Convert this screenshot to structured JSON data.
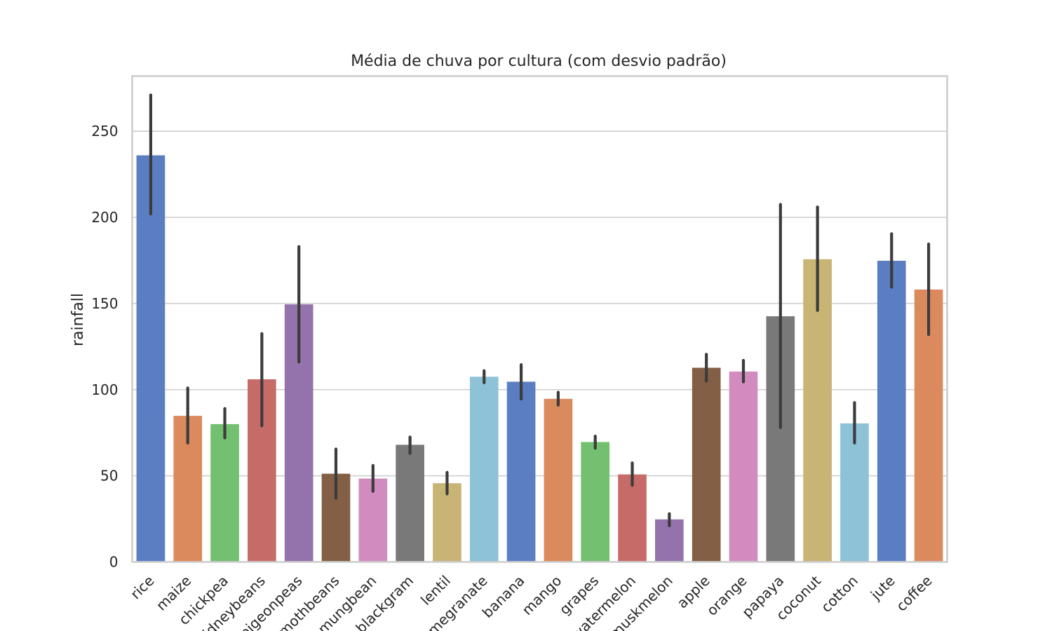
{
  "chart_data": {
    "type": "bar",
    "title": "Média de chuva por cultura (com desvio padrão)",
    "xlabel": "",
    "ylabel": "rainfall",
    "ylim": [
      0,
      282
    ],
    "yticks": [
      0,
      50,
      100,
      150,
      200,
      250
    ],
    "grid": true,
    "categories": [
      "rice",
      "maize",
      "chickpea",
      "kidneybeans",
      "pigeonpeas",
      "mothbeans",
      "mungbean",
      "blackgram",
      "lentil",
      "pomegranate",
      "banana",
      "mango",
      "grapes",
      "watermelon",
      "muskmelon",
      "apple",
      "orange",
      "papaya",
      "coconut",
      "cotton",
      "jute",
      "coffee"
    ],
    "values": [
      236,
      84.8,
      80,
      106,
      149.5,
      51.2,
      48.4,
      68,
      45.7,
      107.5,
      104.6,
      94.7,
      69.6,
      50.8,
      24.7,
      112.7,
      110.5,
      142.6,
      175.7,
      80.4,
      174.8,
      158.1
    ],
    "error_low": [
      202,
      69,
      72,
      79,
      116,
      37,
      41,
      63,
      39.5,
      104,
      94.5,
      91,
      66,
      44.5,
      21,
      105,
      104.5,
      78,
      146,
      69,
      159.5,
      132
    ],
    "error_high": [
      271,
      101,
      89,
      132.5,
      183,
      65.5,
      56,
      72.5,
      52,
      111,
      114.5,
      98.5,
      73,
      57.5,
      28,
      120.5,
      117,
      207.5,
      206,
      92.5,
      190.5,
      184.5
    ],
    "colors": [
      "#5a7ec1",
      "#db8a5e",
      "#72c070",
      "#c76b69",
      "#9473ac",
      "#825f45",
      "#d28bbe",
      "#797979",
      "#c8b474",
      "#8dc2d7",
      "#5a7ec1",
      "#db8a5e",
      "#72c070",
      "#c76b69",
      "#9473ac",
      "#825f45",
      "#d28bbe",
      "#797979",
      "#c8b474",
      "#8dc2d7",
      "#5a7ec1",
      "#db8a5e"
    ]
  }
}
